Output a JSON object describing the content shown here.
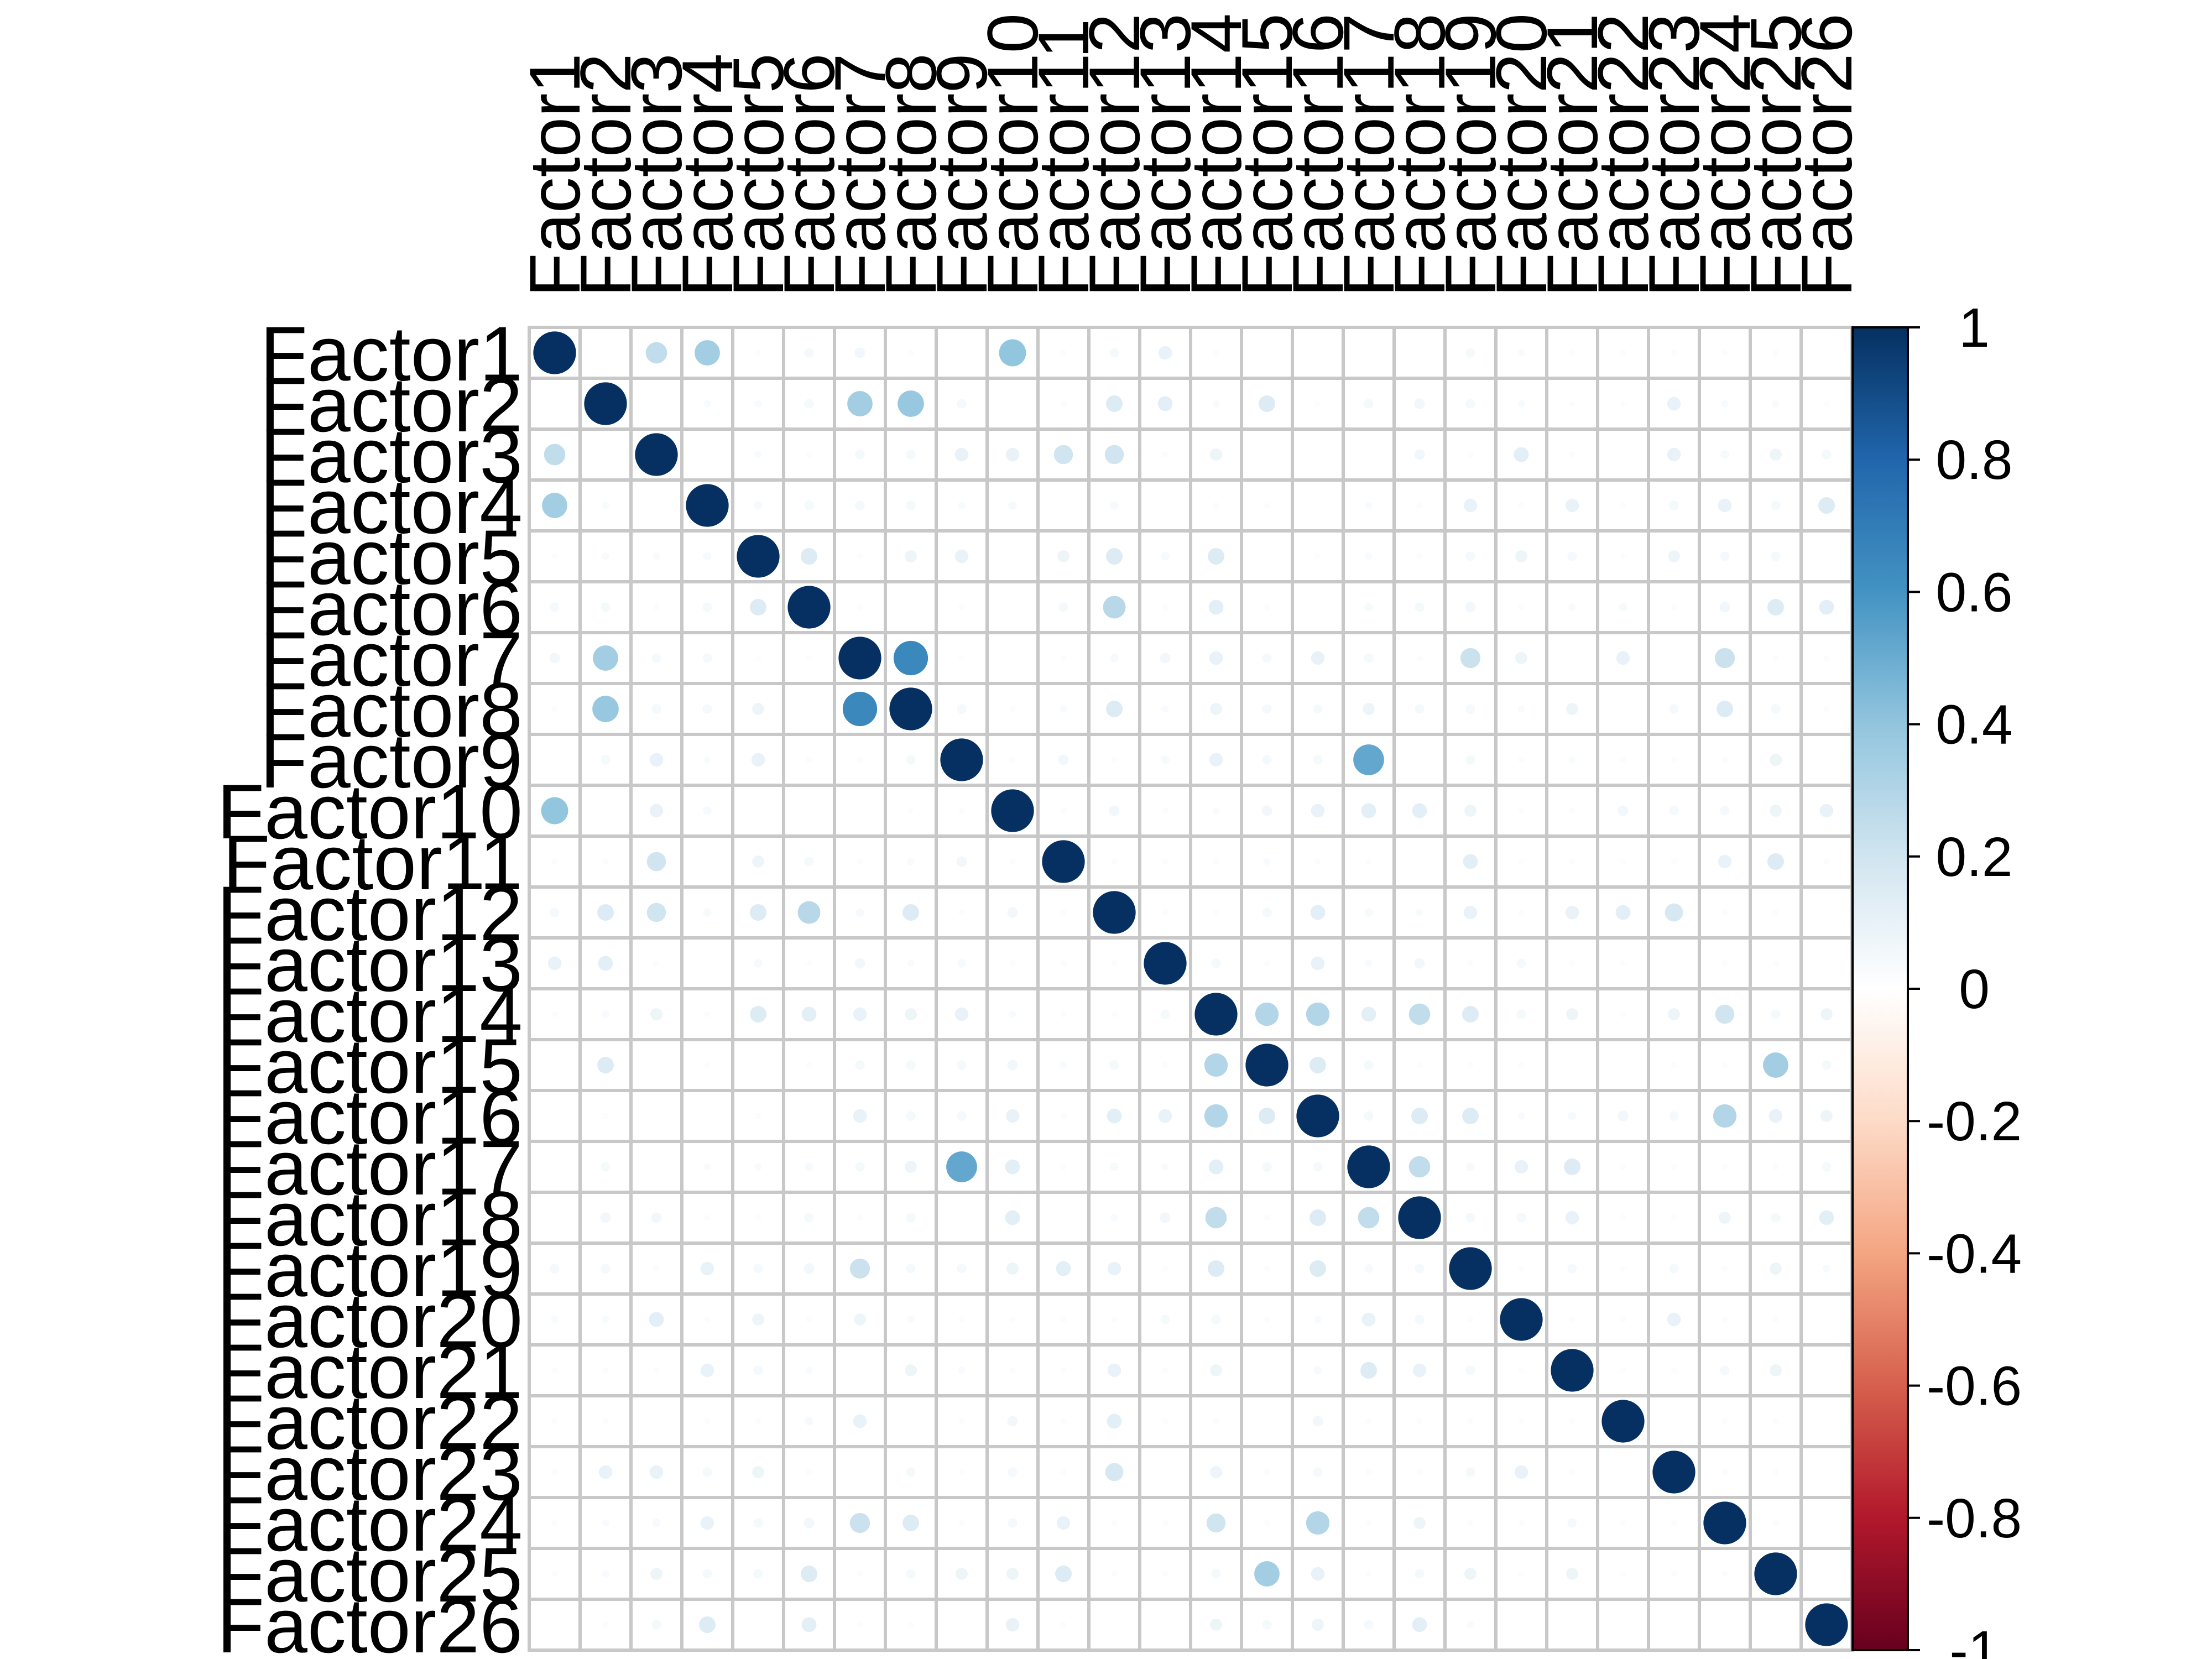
{
  "chart_data": {
    "type": "heatmap",
    "style": "corrplot-circle",
    "labels": [
      "Factor1",
      "Factor2",
      "Factor3",
      "Factor4",
      "Factor5",
      "Factor6",
      "Factor7",
      "Factor8",
      "Factor9",
      "Factor10",
      "Factor11",
      "Factor12",
      "Factor13",
      "Factor14",
      "Factor15",
      "Factor16",
      "Factor17",
      "Factor18",
      "Factor19",
      "Factor20",
      "Factor21",
      "Factor22",
      "Factor23",
      "Factor24",
      "Factor25",
      "Factor26"
    ],
    "values": [
      [
        1,
        0,
        0.25,
        0.35,
        0.02,
        0.05,
        0.06,
        0.02,
        0,
        0.4,
        0.02,
        0.05,
        0.1,
        0.02,
        0,
        0,
        0,
        0,
        0.05,
        0.03,
        0.02,
        0.02,
        0.02,
        0.02,
        0.02,
        0
      ],
      [
        0,
        1,
        0,
        0.03,
        0.03,
        0.05,
        0.35,
        0.38,
        0.05,
        0,
        0.02,
        0.15,
        0.12,
        0.03,
        0.15,
        0.02,
        0.05,
        0.06,
        0.05,
        0.03,
        0.02,
        0.02,
        0.1,
        0.03,
        0.03,
        0.02
      ],
      [
        0.25,
        0,
        1,
        0,
        0.03,
        0.02,
        0.05,
        0.05,
        0.1,
        0.1,
        0.2,
        0.2,
        0.02,
        0.08,
        0,
        0,
        0,
        0.06,
        0.02,
        0.12,
        0.02,
        0,
        0.1,
        0.04,
        0.08,
        0.05
      ],
      [
        0.35,
        0.03,
        0,
        1,
        0.04,
        0.05,
        0.05,
        0.05,
        0.03,
        0.04,
        0,
        0.04,
        0,
        0.02,
        0.02,
        0,
        0.03,
        0.02,
        0.1,
        0.02,
        0.1,
        0.02,
        0.05,
        0.1,
        0.05,
        0.15
      ],
      [
        0.02,
        0.03,
        0.03,
        0.04,
        1,
        0.15,
        0.02,
        0.08,
        0.1,
        0,
        0.08,
        0.15,
        0.04,
        0.15,
        0,
        0.02,
        0.03,
        0.02,
        0.05,
        0.08,
        0.05,
        0.02,
        0.08,
        0.05,
        0.05,
        0
      ],
      [
        0.05,
        0.05,
        0.02,
        0.05,
        0.15,
        1,
        0.02,
        0,
        0.02,
        0,
        0.05,
        0.28,
        0.02,
        0.12,
        0.02,
        0,
        0.04,
        0.05,
        0.06,
        0.02,
        0.03,
        0.04,
        0.02,
        0.06,
        0.15,
        0.12
      ],
      [
        0.06,
        0.35,
        0.05,
        0.05,
        0.02,
        0.02,
        1,
        0.65,
        0.02,
        0,
        0.02,
        0.04,
        0.06,
        0.1,
        0.05,
        0.1,
        0.05,
        0.02,
        0.22,
        0.08,
        0,
        0.1,
        0,
        0.22,
        0.02,
        0.02
      ],
      [
        0.02,
        0.38,
        0.05,
        0.05,
        0.08,
        0,
        0.65,
        1,
        0.05,
        0.02,
        0.03,
        0.15,
        0.03,
        0.08,
        0.05,
        0.05,
        0.08,
        0.05,
        0.05,
        0.03,
        0.08,
        0,
        0.05,
        0.15,
        0.05,
        0.02
      ],
      [
        0,
        0.05,
        0.1,
        0.03,
        0.1,
        0.02,
        0.02,
        0.05,
        1,
        0.02,
        0.06,
        0.02,
        0.04,
        0.1,
        0.05,
        0.05,
        0.52,
        0,
        0.05,
        0.02,
        0.03,
        0.02,
        0.02,
        0.02,
        0.08,
        0
      ],
      [
        0.4,
        0,
        0.1,
        0.04,
        0,
        0,
        0,
        0.02,
        0.02,
        1,
        0.02,
        0.06,
        0.02,
        0.03,
        0.06,
        0.1,
        0.12,
        0.12,
        0.08,
        0.02,
        0.02,
        0.06,
        0.05,
        0.05,
        0.08,
        0.1
      ],
      [
        0.02,
        0.02,
        0.2,
        0,
        0.08,
        0.05,
        0.02,
        0.03,
        0.06,
        0.02,
        1,
        0.02,
        0.02,
        0.02,
        0.03,
        0.02,
        0.02,
        0,
        0.12,
        0.02,
        0.02,
        0.02,
        0.02,
        0.1,
        0.15,
        0.02
      ],
      [
        0.05,
        0.15,
        0.2,
        0.04,
        0.15,
        0.28,
        0.04,
        0.15,
        0.02,
        0.06,
        0.02,
        1,
        0.02,
        0.02,
        0.05,
        0.12,
        0.04,
        0.03,
        0.1,
        0.02,
        0.1,
        0.12,
        0.18,
        0.02,
        0.02,
        0
      ],
      [
        0.1,
        0.12,
        0.02,
        0,
        0.04,
        0.02,
        0.06,
        0.03,
        0.04,
        0.02,
        0.02,
        0.02,
        1,
        0.05,
        0.02,
        0.1,
        0.03,
        0.06,
        0.02,
        0.05,
        0.02,
        0.02,
        0,
        0.02,
        0.02,
        0
      ],
      [
        0.02,
        0.03,
        0.08,
        0.02,
        0.15,
        0.12,
        0.1,
        0.08,
        0.1,
        0.03,
        0.02,
        0.02,
        0.05,
        1,
        0.3,
        0.3,
        0.12,
        0.25,
        0.15,
        0.05,
        0.08,
        0.02,
        0.08,
        0.2,
        0.05,
        0.08
      ],
      [
        0,
        0.15,
        0,
        0.02,
        0,
        0.02,
        0.05,
        0.05,
        0.05,
        0.06,
        0.03,
        0.05,
        0.02,
        0.3,
        1,
        0.15,
        0.05,
        0.02,
        0.02,
        0.02,
        0,
        0,
        0.02,
        0.02,
        0.35,
        0.05
      ],
      [
        0,
        0.02,
        0,
        0,
        0.02,
        0,
        0.1,
        0.05,
        0.05,
        0.1,
        0.02,
        0.12,
        0.1,
        0.3,
        0.15,
        1,
        0.05,
        0.15,
        0.15,
        0.03,
        0.04,
        0.06,
        0.05,
        0.3,
        0.1,
        0.08
      ],
      [
        0,
        0.05,
        0,
        0.03,
        0.03,
        0.04,
        0.05,
        0.08,
        0.52,
        0.12,
        0.02,
        0.04,
        0.03,
        0.12,
        0.05,
        0.05,
        1,
        0.25,
        0.04,
        0.1,
        0.15,
        0.02,
        0.02,
        0.02,
        0.02,
        0.05
      ],
      [
        0,
        0.06,
        0.06,
        0.02,
        0.02,
        0.05,
        0.02,
        0.05,
        0,
        0.12,
        0,
        0.03,
        0.06,
        0.25,
        0.02,
        0.15,
        0.25,
        1,
        0.05,
        0.05,
        0.1,
        0.02,
        0.02,
        0.08,
        0.05,
        0.12
      ],
      [
        0.05,
        0.05,
        0.02,
        0.1,
        0.05,
        0.06,
        0.22,
        0.05,
        0.05,
        0.08,
        0.12,
        0.1,
        0.02,
        0.15,
        0.02,
        0.15,
        0.04,
        0.05,
        1,
        0.02,
        0.05,
        0.02,
        0.05,
        0.02,
        0.08,
        0.03
      ],
      [
        0.03,
        0.03,
        0.12,
        0.02,
        0.08,
        0.02,
        0.08,
        0.03,
        0.02,
        0.02,
        0.02,
        0.02,
        0.05,
        0.05,
        0.02,
        0.03,
        0.1,
        0.05,
        0.02,
        1,
        0.02,
        0.02,
        0.1,
        0.02,
        0.02,
        0
      ],
      [
        0.02,
        0.02,
        0.02,
        0.1,
        0.05,
        0.03,
        0,
        0.08,
        0.03,
        0.02,
        0.02,
        0.1,
        0.02,
        0.08,
        0,
        0.04,
        0.15,
        0.1,
        0.05,
        0.02,
        1,
        0.02,
        0.02,
        0.05,
        0.08,
        0
      ],
      [
        0.02,
        0.02,
        0,
        0.02,
        0.02,
        0.04,
        0.1,
        0,
        0.02,
        0.06,
        0.02,
        0.12,
        0.02,
        0.02,
        0,
        0.06,
        0.02,
        0.02,
        0.02,
        0.02,
        0.02,
        1,
        0,
        0.02,
        0.02,
        0
      ],
      [
        0.02,
        0.1,
        0.1,
        0.05,
        0.08,
        0.02,
        0,
        0.05,
        0.02,
        0.05,
        0.02,
        0.18,
        0,
        0.08,
        0.02,
        0.05,
        0.02,
        0.02,
        0.05,
        0.1,
        0.02,
        0,
        1,
        0.02,
        0.02,
        0
      ],
      [
        0.02,
        0.03,
        0.04,
        0.1,
        0.05,
        0.06,
        0.22,
        0.15,
        0.02,
        0.05,
        0.1,
        0.02,
        0.02,
        0.2,
        0.02,
        0.3,
        0.02,
        0.08,
        0.02,
        0.02,
        0.05,
        0.02,
        0.02,
        1,
        0.02,
        0
      ],
      [
        0.02,
        0.03,
        0.08,
        0.05,
        0.05,
        0.15,
        0.02,
        0.05,
        0.08,
        0.08,
        0.15,
        0.02,
        0.02,
        0.05,
        0.35,
        0.1,
        0.02,
        0.05,
        0.08,
        0.02,
        0.08,
        0.02,
        0.02,
        0.02,
        1,
        0
      ],
      [
        0,
        0.02,
        0.05,
        0.15,
        0,
        0.12,
        0.02,
        0.02,
        0,
        0.1,
        0.02,
        0,
        0,
        0.08,
        0.05,
        0.08,
        0.05,
        0.12,
        0.03,
        0,
        0,
        0,
        0,
        0,
        0,
        1
      ]
    ],
    "colorbar": {
      "ticks": [
        "1",
        "0.8",
        "0.6",
        "0.4",
        "0.2",
        "0",
        "-0.2",
        "-0.4",
        "-0.6",
        "-0.8",
        "-1"
      ],
      "range": [
        -1,
        1
      ]
    },
    "grid": true,
    "legend": "right"
  }
}
